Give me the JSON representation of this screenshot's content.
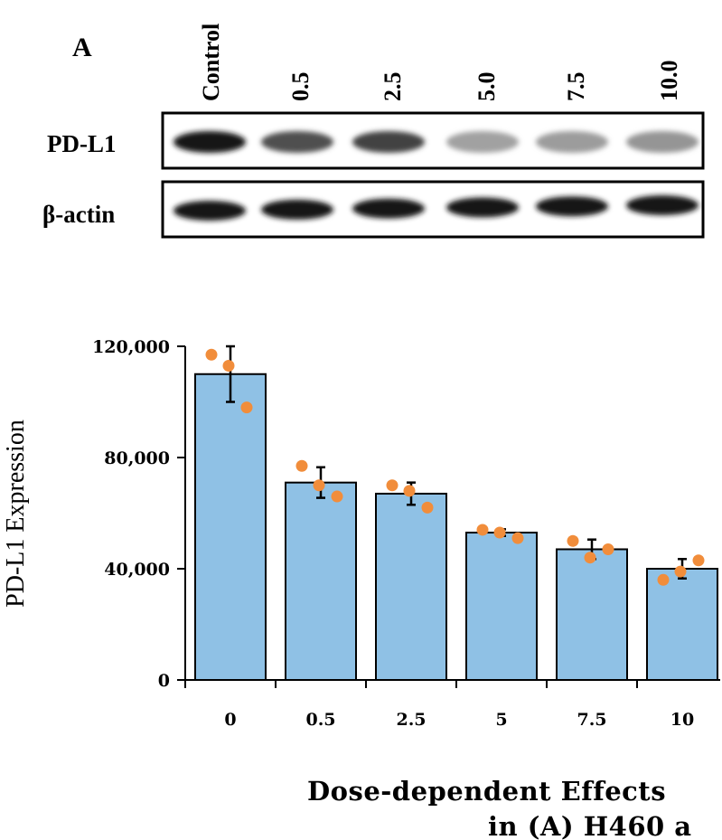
{
  "panel_label": "A",
  "blot": {
    "lanes": [
      "Control",
      "0.5",
      "2.5",
      "5.0",
      "7.5",
      "10.0"
    ],
    "rows": [
      {
        "label": "PD-L1",
        "band_intensity": [
          1.0,
          0.75,
          0.8,
          0.4,
          0.42,
          0.45
        ]
      },
      {
        "label": "β-actin",
        "band_intensity": [
          1.0,
          1.0,
          1.0,
          1.0,
          1.0,
          1.0
        ]
      }
    ]
  },
  "chart_data": {
    "type": "bar",
    "ylabel": "PD-L1 Expression",
    "xlabel": "",
    "ylim": [
      0,
      120000
    ],
    "yticks": [
      0,
      40000,
      80000,
      120000
    ],
    "ytick_labels": [
      "0",
      "40,000",
      "80,000",
      "120,000"
    ],
    "categories": [
      "0",
      "0.5",
      "2.5",
      "5",
      "7.5",
      "10"
    ],
    "values": [
      110000,
      71000,
      67000,
      53000,
      47000,
      40000
    ],
    "error": [
      10000,
      5500,
      4000,
      1200,
      3500,
      3500
    ],
    "points": [
      [
        117000,
        113000,
        98000
      ],
      [
        77000,
        70000,
        66000
      ],
      [
        70000,
        68000,
        62000
      ],
      [
        54000,
        53000,
        51000
      ],
      [
        50000,
        44000,
        47000
      ],
      [
        36000,
        39000,
        43000
      ]
    ],
    "bar_color": "#8fc1e5",
    "point_color": "#f18d3b"
  },
  "caption": {
    "line1": "Dose-dependent Effects",
    "line2": "in (A) H460 a"
  }
}
